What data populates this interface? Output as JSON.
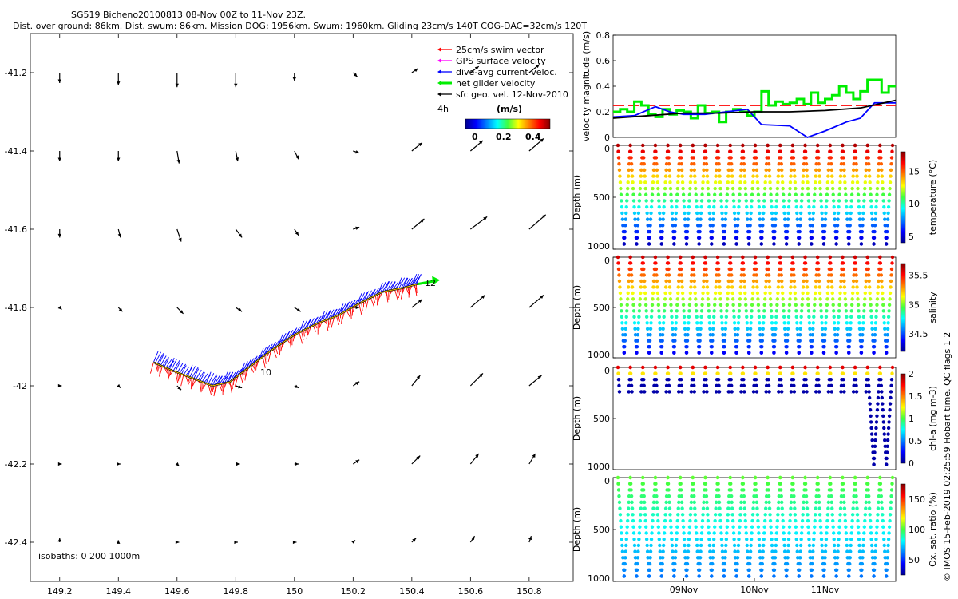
{
  "header": {
    "title_line1": "SG519 Bicheno20100813 08-Nov 00Z to 11-Nov 23Z.",
    "title_line2": "Dist. over ground: 86km. Dist. swum: 86km. Mission DOG: 1956km. Swum: 1960km. Gliding 23cm/s 140T COG-DAC=32cm/s 120T"
  },
  "map": {
    "legend": [
      {
        "label": "25cm/s swim vector",
        "color": "#ff0000"
      },
      {
        "label": "GPS surface velocity",
        "color": "#ff00ff"
      },
      {
        "label": "dive-avg current veloc.",
        "color": "#0000ff"
      },
      {
        "label": "net glider velocity",
        "color": "#00ee00"
      },
      {
        "label": "sfc geo. vel. 12-Nov-2010",
        "color": "#000000"
      }
    ],
    "legend_extra": "4h",
    "colorbar_title": "(m/s)",
    "colorbar_ticks": [
      "0",
      "0.2",
      "0.4"
    ],
    "isobaths": "isobaths: 0   200  1000m",
    "track_labels": [
      "10",
      "12"
    ]
  },
  "footer": {
    "credit": "© IMOS 15-Feb-2019 02:25:59 Hobart time. QC flags 1  2"
  },
  "chart_data": [
    {
      "type": "scatter",
      "title": "",
      "xlabel": "",
      "ylabel": "",
      "xlim": [
        149.1,
        150.95
      ],
      "ylim": [
        -42.5,
        -41.1
      ],
      "xticks": [
        149.2,
        149.4,
        149.6,
        149.8,
        150,
        150.2,
        150.4,
        150.6,
        150.8
      ],
      "xtick_labels": [
        "149.2",
        "149.4",
        "149.6",
        "149.8",
        "150",
        "150.2",
        "150.4",
        "150.6",
        "150.8"
      ],
      "yticks": [
        -41.2,
        -41.4,
        -41.6,
        -41.8,
        -42,
        -42.2,
        -42.4
      ],
      "ytick_labels": [
        "-41.2",
        "-41.4",
        "-41.6",
        "-41.8",
        "-42",
        "-42.2",
        "-42.4"
      ],
      "grid": false,
      "glider_track": {
        "lon": [
          149.52,
          149.58,
          149.65,
          149.72,
          149.78,
          149.85,
          149.92,
          150.0,
          150.08,
          150.15,
          150.22,
          150.3,
          150.37,
          150.42
        ],
        "lat": [
          -41.94,
          -41.96,
          -41.98,
          -42.0,
          -41.99,
          -41.95,
          -41.91,
          -41.87,
          -41.84,
          -41.82,
          -41.79,
          -41.76,
          -41.75,
          -41.74
        ]
      },
      "geostrophic_velocity_grid": {
        "lon": [
          149.2,
          149.4,
          149.6,
          149.8,
          150.0,
          150.2,
          150.4,
          150.6,
          150.8
        ],
        "lat": [
          -41.2,
          -41.4,
          -41.6,
          -41.8,
          -42.0,
          -42.2,
          -42.4
        ],
        "note_u_v_ms": "u,v per row (lat) per column (lon)",
        "u": [
          [
            0.0,
            0.0,
            0.0,
            0.0,
            0.0,
            0.02,
            0.03,
            0.04,
            0.05
          ],
          [
            0.0,
            0.0,
            0.01,
            0.01,
            0.02,
            0.03,
            0.05,
            0.06,
            0.07
          ],
          [
            0.0,
            0.01,
            0.02,
            0.03,
            0.02,
            0.03,
            0.06,
            0.08,
            0.08
          ],
          [
            0.01,
            0.02,
            0.03,
            0.03,
            0.03,
            0.03,
            0.05,
            0.07,
            0.07
          ],
          [
            0.01,
            0.01,
            0.02,
            0.03,
            0.02,
            0.03,
            0.04,
            0.06,
            0.06
          ],
          [
            0.01,
            0.01,
            0.01,
            0.02,
            0.02,
            0.03,
            0.04,
            0.04,
            0.03
          ],
          [
            0.0,
            0.0,
            0.01,
            0.01,
            0.01,
            0.01,
            0.02,
            0.02,
            0.01
          ]
        ],
        "v": [
          [
            -0.05,
            -0.06,
            -0.07,
            -0.07,
            -0.04,
            -0.02,
            0.02,
            0.03,
            0.04
          ],
          [
            -0.05,
            -0.05,
            -0.06,
            -0.05,
            -0.04,
            -0.01,
            0.04,
            0.05,
            0.06
          ],
          [
            -0.04,
            -0.04,
            -0.06,
            -0.04,
            -0.03,
            0.01,
            0.05,
            0.06,
            0.07
          ],
          [
            -0.01,
            -0.02,
            -0.03,
            -0.02,
            -0.02,
            0.0,
            0.04,
            0.06,
            0.06
          ],
          [
            0.0,
            -0.01,
            -0.02,
            -0.01,
            -0.01,
            0.02,
            0.05,
            0.06,
            0.05
          ],
          [
            0.0,
            0.0,
            -0.01,
            0.0,
            0.0,
            0.02,
            0.04,
            0.05,
            0.05
          ],
          [
            0.02,
            0.01,
            0.0,
            0.0,
            0.0,
            0.01,
            0.02,
            0.03,
            0.03
          ]
        ]
      }
    },
    {
      "type": "line",
      "ylabel": "velocity magnitude (m/s)",
      "ylim": [
        0,
        0.8
      ],
      "yticks": [
        0,
        0.2,
        0.4,
        0.6,
        0.8
      ],
      "ytick_labels": [
        "0",
        "0.2",
        "0.4",
        "0.6",
        "0.8"
      ],
      "xlim": [
        8.0,
        12.0
      ],
      "series": [
        {
          "color": "#ff0000",
          "x": [
            8.0,
            12.0
          ],
          "values": [
            0.25,
            0.25
          ]
        },
        {
          "color": "#00ee00",
          "x": [
            8.0,
            8.1,
            8.2,
            8.3,
            8.4,
            8.5,
            8.6,
            8.7,
            8.8,
            8.9,
            9.0,
            9.1,
            9.2,
            9.3,
            9.4,
            9.5,
            9.6,
            9.7,
            9.8,
            9.9,
            10.0,
            10.1,
            10.2,
            10.3,
            10.4,
            10.5,
            10.6,
            10.7,
            10.8,
            10.9,
            11.0,
            11.1,
            11.2,
            11.3,
            11.4,
            11.5,
            11.6,
            11.7,
            11.8,
            11.9,
            12.0
          ],
          "values": [
            0.2,
            0.22,
            0.2,
            0.28,
            0.25,
            0.18,
            0.16,
            0.22,
            0.18,
            0.21,
            0.2,
            0.15,
            0.25,
            0.19,
            0.2,
            0.12,
            0.2,
            0.22,
            0.2,
            0.17,
            0.2,
            0.36,
            0.25,
            0.28,
            0.26,
            0.27,
            0.3,
            0.26,
            0.35,
            0.27,
            0.3,
            0.33,
            0.4,
            0.35,
            0.3,
            0.36,
            0.45,
            0.45,
            0.35,
            0.4,
            0.4
          ]
        },
        {
          "color": "#0000ff",
          "x": [
            8.0,
            8.3,
            8.6,
            8.8,
            9.0,
            9.3,
            9.6,
            9.9,
            10.1,
            10.5,
            10.75,
            11.0,
            11.3,
            11.5,
            11.7,
            11.9,
            12.0
          ],
          "values": [
            0.16,
            0.17,
            0.24,
            0.2,
            0.18,
            0.18,
            0.2,
            0.22,
            0.1,
            0.09,
            0.0,
            0.05,
            0.12,
            0.15,
            0.27,
            0.27,
            0.27
          ]
        },
        {
          "color": "#000000",
          "x": [
            8.0,
            8.5,
            9.0,
            9.5,
            10.0,
            10.5,
            11.0,
            11.5,
            12.0
          ],
          "values": [
            0.15,
            0.17,
            0.19,
            0.19,
            0.2,
            0.2,
            0.21,
            0.23,
            0.29
          ]
        }
      ]
    },
    {
      "type": "scatter",
      "ylabel": "Depth (m)",
      "ylim": [
        1000,
        0
      ],
      "yticks": [
        0,
        500,
        1000
      ],
      "ytick_labels": [
        "0",
        "500",
        "1000"
      ],
      "colorbar_label": "temperature (°C)",
      "colorbar_range": [
        4,
        18
      ],
      "colorbar_ticks": [
        "5",
        "10",
        "15"
      ],
      "dives": 22,
      "max_depth": 1000
    },
    {
      "type": "scatter",
      "ylabel": "Depth (m)",
      "ylim": [
        1000,
        0
      ],
      "yticks": [
        0,
        500,
        1000
      ],
      "ytick_labels": [
        "0",
        "500",
        "1000"
      ],
      "colorbar_label": "salinity",
      "colorbar_range": [
        34.2,
        35.7
      ],
      "colorbar_ticks": [
        "34.5",
        "35",
        "35.5"
      ],
      "dives": 22,
      "max_depth": 1000
    },
    {
      "type": "scatter",
      "ylabel": "Depth (m)",
      "ylim": [
        1000,
        0
      ],
      "yticks": [
        0,
        500,
        1000
      ],
      "ytick_labels": [
        "0",
        "500",
        "1000"
      ],
      "colorbar_label": "chl-a (mg m-3)",
      "colorbar_range": [
        0,
        2
      ],
      "colorbar_ticks": [
        "0",
        "0.5",
        "1",
        "1.5",
        "2"
      ],
      "dives": 22,
      "max_depth": 1000
    },
    {
      "type": "scatter",
      "ylabel": "Depth (m)",
      "ylim": [
        1000,
        0
      ],
      "yticks": [
        0,
        500,
        1000
      ],
      "ytick_labels": [
        "0",
        "500",
        "1000"
      ],
      "colorbar_label": "Ox. sat. ratio (%)",
      "colorbar_range": [
        25,
        175
      ],
      "colorbar_ticks": [
        "50",
        "100",
        "150"
      ],
      "dives": 22,
      "max_depth": 1000,
      "xtick_labels": [
        "09Nov",
        "10Nov",
        "11Nov"
      ],
      "xticks": [
        9,
        10,
        11
      ],
      "xlim": [
        8.0,
        12.0
      ]
    }
  ]
}
